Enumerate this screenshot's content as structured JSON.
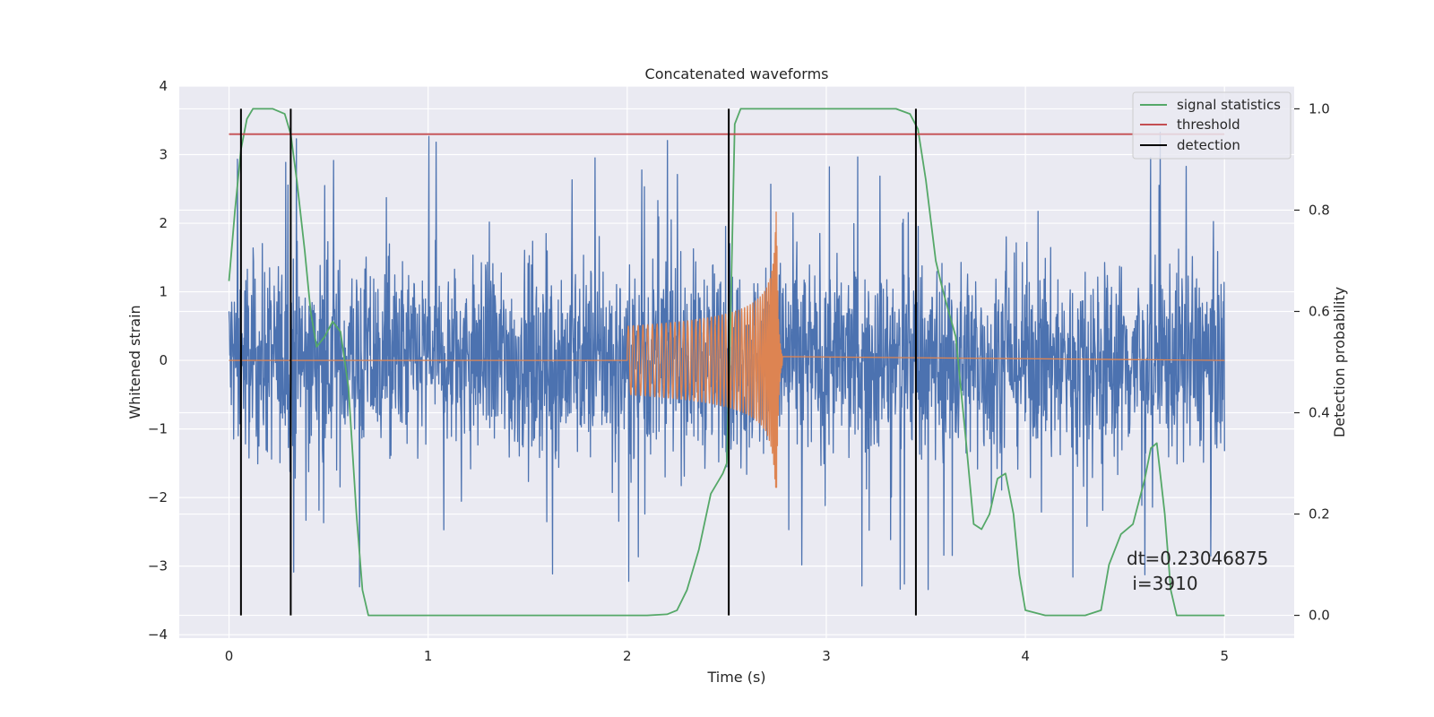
{
  "chart_data": {
    "type": "line",
    "title": "Concatenated waveforms",
    "xlabel": "Time (s)",
    "ylabel": "Whitened strain",
    "y2label": "Detection probability",
    "xlim": [
      -0.25,
      5.35
    ],
    "ylim": [
      -4.05,
      4.0
    ],
    "y2lim": [
      -0.045,
      1.045
    ],
    "xticks": [
      0,
      1,
      2,
      3,
      4,
      5
    ],
    "xtick_labels": [
      "0",
      "1",
      "2",
      "3",
      "4",
      "5"
    ],
    "yticks": [
      4,
      3,
      2,
      1,
      0,
      -1,
      -2,
      -3,
      -4
    ],
    "ytick_labels": [
      "4",
      "3",
      "2",
      "1",
      "0",
      "−1",
      "−2",
      "−3",
      "−4"
    ],
    "y2ticks": [
      1.0,
      0.8,
      0.6,
      0.4,
      0.2,
      0.0
    ],
    "y2tick_labels": [
      "1.0",
      "0.8",
      "0.6",
      "0.4",
      "0.2",
      "0.0"
    ],
    "grid": true,
    "legend_position": "top-right",
    "legend": [
      "signal statistics",
      "threshold",
      "detection"
    ],
    "colors": {
      "noise": "#4c72b0",
      "injection": "#dd8452",
      "signal_statistics": "#55a868",
      "threshold": "#c44e52",
      "detection": "#000000",
      "background": "#eaeaf2"
    },
    "series": [
      {
        "axis": "left",
        "color": "#4c72b0",
        "x_range": [
          0,
          5
        ],
        "envelope": {
          "typical_amplitude": 1.3,
          "peak_max": 3.6,
          "peak_min": -3.7
        }
      },
      {
        "axis": "left",
        "color": "#dd8452",
        "x_start": 2.0,
        "x_merger": 2.75,
        "x_end": 5.0,
        "peak_max": 2.5,
        "peak_min": -1.85
      },
      {
        "name": "signal statistics",
        "axis": "right",
        "color": "#55a868",
        "x": [
          0.0,
          0.03,
          0.06,
          0.09,
          0.12,
          0.16,
          0.22,
          0.28,
          0.31,
          0.34,
          0.38,
          0.41,
          0.44,
          0.48,
          0.52,
          0.56,
          0.6,
          0.64,
          0.67,
          0.7,
          1.5,
          2.1,
          2.2,
          2.25,
          2.3,
          2.36,
          2.42,
          2.48,
          2.5,
          2.52,
          2.54,
          2.57,
          2.6,
          2.8,
          3.0,
          3.2,
          3.35,
          3.42,
          3.46,
          3.5,
          3.55,
          3.58,
          3.6,
          3.65,
          3.7,
          3.74,
          3.78,
          3.82,
          3.86,
          3.9,
          3.94,
          3.97,
          4.0,
          4.1,
          4.3,
          4.38,
          4.42,
          4.48,
          4.54,
          4.6,
          4.63,
          4.66,
          4.7,
          4.73,
          4.76,
          4.8,
          5.0
        ],
        "values": [
          0.66,
          0.8,
          0.92,
          0.98,
          1.0,
          1.0,
          1.0,
          0.99,
          0.95,
          0.86,
          0.72,
          0.6,
          0.53,
          0.55,
          0.58,
          0.56,
          0.45,
          0.2,
          0.05,
          0.0,
          0.0,
          0.0,
          0.002,
          0.01,
          0.05,
          0.13,
          0.24,
          0.28,
          0.3,
          0.6,
          0.97,
          1.0,
          1.0,
          1.0,
          1.0,
          1.0,
          1.0,
          0.99,
          0.96,
          0.86,
          0.7,
          0.65,
          0.62,
          0.55,
          0.35,
          0.18,
          0.17,
          0.2,
          0.27,
          0.28,
          0.2,
          0.08,
          0.01,
          0.0,
          0.0,
          0.01,
          0.1,
          0.16,
          0.18,
          0.27,
          0.33,
          0.34,
          0.2,
          0.05,
          0.0,
          0.0,
          0.0
        ]
      },
      {
        "name": "threshold",
        "axis": "right",
        "color": "#c44e52",
        "x": [
          0,
          5
        ],
        "values": [
          0.95,
          0.95
        ]
      },
      {
        "name": "detection",
        "axis": "right",
        "color": "#000000",
        "x": [
          0.06,
          0.31,
          2.51,
          3.45
        ],
        "values": [
          1.0,
          1.0,
          1.0,
          1.0
        ]
      }
    ],
    "annotations": [
      "dt=0.23046875",
      " i=3910"
    ]
  }
}
